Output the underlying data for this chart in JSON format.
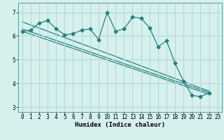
{
  "title": "",
  "xlabel": "Humidex (Indice chaleur)",
  "ylabel": "",
  "background_color": "#d6f0ee",
  "grid_color": "#b0d8d4",
  "line_color": "#267f7f",
  "xlim": [
    -0.5,
    23.5
  ],
  "ylim": [
    2.8,
    7.4
  ],
  "xticks": [
    0,
    1,
    2,
    3,
    4,
    5,
    6,
    7,
    8,
    9,
    10,
    11,
    12,
    13,
    14,
    15,
    16,
    17,
    18,
    19,
    20,
    21,
    22,
    23
  ],
  "yticks": [
    3,
    4,
    5,
    6,
    7
  ],
  "line1_x": [
    0,
    1,
    2,
    3,
    4,
    5,
    6,
    7,
    8,
    9,
    10,
    11,
    12,
    13,
    14,
    15,
    16,
    17,
    18,
    19,
    20,
    21,
    22
  ],
  "line1_y": [
    6.2,
    6.25,
    6.55,
    6.65,
    6.3,
    6.05,
    6.1,
    6.25,
    6.3,
    5.85,
    7.0,
    6.2,
    6.3,
    6.8,
    6.75,
    6.35,
    5.55,
    5.8,
    4.85,
    4.1,
    3.5,
    3.45,
    3.6
  ],
  "line2_x": [
    0,
    22
  ],
  "line2_y": [
    6.2,
    3.55
  ],
  "line3_x": [
    0,
    22
  ],
  "line3_y": [
    6.3,
    3.62
  ],
  "line4_x": [
    0,
    22
  ],
  "line4_y": [
    6.6,
    3.68
  ],
  "marker": "D",
  "markersize": 2.5,
  "linewidth": 0.9,
  "tick_fontsize": 5.5,
  "xlabel_fontsize": 6.5
}
